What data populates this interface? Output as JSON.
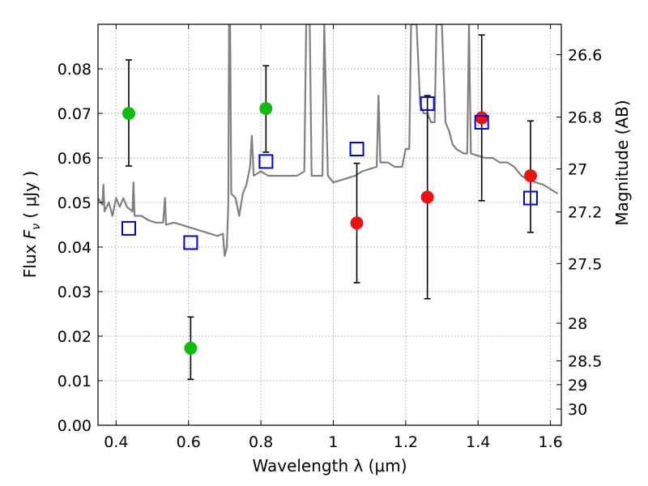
{
  "chart_data": {
    "type": "scatter",
    "xlabel": "Wavelength  λ (μm)",
    "ylabel": "Flux  F_ν  ( μJy )",
    "ylabel_parts": {
      "prefix": "Flux  ",
      "symbol": "F",
      "subscript": "ν",
      "suffix": "  ( μJy )"
    },
    "y2label": "Magnitude (AB)",
    "xlim": [
      0.35,
      1.63
    ],
    "ylim": [
      0.0,
      0.09
    ],
    "x_ticks": [
      0.4,
      0.6,
      0.8,
      1.0,
      1.2,
      1.4,
      1.6
    ],
    "x_tick_labels": [
      "0.4",
      "0.6",
      "0.8",
      "1",
      "1.2",
      "1.4",
      "1.6"
    ],
    "y_ticks": [
      0.0,
      0.01,
      0.02,
      0.03,
      0.04,
      0.05,
      0.06,
      0.07,
      0.08
    ],
    "y_tick_labels": [
      "0.00",
      "0.01",
      "0.02",
      "0.03",
      "0.04",
      "0.05",
      "0.06",
      "0.07",
      "0.08"
    ],
    "mag_ticks": [
      26.6,
      26.8,
      27,
      27.2,
      27.5,
      28,
      28.5,
      29,
      30
    ],
    "mag_tick_labels": [
      "26.6",
      "26.8",
      "27",
      "27.2",
      "27.5",
      "28",
      "28.5",
      "29",
      "30"
    ],
    "grid": true,
    "colors": {
      "green": "#11bb11",
      "red": "#ee1111",
      "blue": "#0000dd",
      "spectrum": "#808080",
      "errorbar": "#000000"
    },
    "series": [
      {
        "name": "green points",
        "marker": "circle",
        "color": "#11bb11",
        "points": [
          {
            "x": 0.435,
            "y": 0.07,
            "ylo": 0.0582,
            "yhi": 0.082
          },
          {
            "x": 0.606,
            "y": 0.0173,
            "ylo": 0.0103,
            "yhi": 0.0243
          },
          {
            "x": 0.814,
            "y": 0.0711,
            "ylo": 0.0613,
            "yhi": 0.0807
          }
        ]
      },
      {
        "name": "red points",
        "marker": "circle",
        "color": "#ee1111",
        "points": [
          {
            "x": 1.065,
            "y": 0.0454,
            "ylo": 0.032,
            "yhi": 0.0588
          },
          {
            "x": 1.26,
            "y": 0.0512,
            "ylo": 0.0284,
            "yhi": 0.074
          },
          {
            "x": 1.41,
            "y": 0.069,
            "ylo": 0.0504,
            "yhi": 0.0876
          },
          {
            "x": 1.545,
            "y": 0.056,
            "ylo": 0.0433,
            "yhi": 0.0683
          }
        ]
      },
      {
        "name": "blue model squares",
        "marker": "open-square",
        "color": "#0000dd",
        "points": [
          {
            "x": 0.435,
            "y": 0.0442
          },
          {
            "x": 0.606,
            "y": 0.041
          },
          {
            "x": 0.814,
            "y": 0.0592
          },
          {
            "x": 1.065,
            "y": 0.062
          },
          {
            "x": 1.26,
            "y": 0.0722
          },
          {
            "x": 1.41,
            "y": 0.068
          },
          {
            "x": 1.545,
            "y": 0.051
          }
        ]
      },
      {
        "name": "spectrum",
        "type": "line",
        "color": "#808080",
        "points": [
          [
            0.35,
            0.051
          ],
          [
            0.362,
            0.0495
          ],
          [
            0.365,
            0.054
          ],
          [
            0.368,
            0.048
          ],
          [
            0.38,
            0.05
          ],
          [
            0.39,
            0.047
          ],
          [
            0.4,
            0.051
          ],
          [
            0.41,
            0.049
          ],
          [
            0.42,
            0.051
          ],
          [
            0.43,
            0.049
          ],
          [
            0.445,
            0.048
          ],
          [
            0.448,
            0.0545
          ],
          [
            0.451,
            0.047
          ],
          [
            0.47,
            0.047
          ],
          [
            0.49,
            0.046
          ],
          [
            0.51,
            0.0455
          ],
          [
            0.53,
            0.0455
          ],
          [
            0.535,
            0.051
          ],
          [
            0.538,
            0.045
          ],
          [
            0.56,
            0.0455
          ],
          [
            0.58,
            0.045
          ],
          [
            0.6,
            0.0445
          ],
          [
            0.62,
            0.044
          ],
          [
            0.64,
            0.0435
          ],
          [
            0.66,
            0.043
          ],
          [
            0.68,
            0.0425
          ],
          [
            0.695,
            0.043
          ],
          [
            0.7,
            0.038
          ],
          [
            0.706,
            0.04
          ],
          [
            0.71,
            0.05
          ],
          [
            0.712,
            0.09
          ],
          [
            0.715,
            0.09
          ],
          [
            0.718,
            0.052
          ],
          [
            0.73,
            0.051
          ],
          [
            0.74,
            0.047
          ],
          [
            0.75,
            0.052
          ],
          [
            0.76,
            0.054
          ],
          [
            0.77,
            0.058
          ],
          [
            0.775,
            0.065
          ],
          [
            0.78,
            0.056
          ],
          [
            0.8,
            0.057
          ],
          [
            0.82,
            0.056
          ],
          [
            0.84,
            0.056
          ],
          [
            0.86,
            0.056
          ],
          [
            0.88,
            0.056
          ],
          [
            0.9,
            0.056
          ],
          [
            0.92,
            0.057
          ],
          [
            0.925,
            0.09
          ],
          [
            0.935,
            0.09
          ],
          [
            0.94,
            0.056
          ],
          [
            0.96,
            0.056
          ],
          [
            0.97,
            0.056
          ],
          [
            0.975,
            0.09
          ],
          [
            0.985,
            0.056
          ],
          [
            1.0,
            0.0545
          ],
          [
            1.02,
            0.055
          ],
          [
            1.04,
            0.0555
          ],
          [
            1.06,
            0.056
          ],
          [
            1.08,
            0.057
          ],
          [
            1.1,
            0.0575
          ],
          [
            1.12,
            0.058
          ],
          [
            1.125,
            0.074
          ],
          [
            1.13,
            0.059
          ],
          [
            1.15,
            0.059
          ],
          [
            1.17,
            0.058
          ],
          [
            1.19,
            0.058
          ],
          [
            1.2,
            0.062
          ],
          [
            1.21,
            0.062
          ],
          [
            1.215,
            0.09
          ],
          [
            1.23,
            0.09
          ],
          [
            1.24,
            0.072
          ],
          [
            1.25,
            0.07
          ],
          [
            1.26,
            0.07
          ],
          [
            1.27,
            0.068
          ],
          [
            1.28,
            0.068
          ],
          [
            1.285,
            0.09
          ],
          [
            1.3,
            0.09
          ],
          [
            1.31,
            0.068
          ],
          [
            1.32,
            0.066
          ],
          [
            1.33,
            0.063
          ],
          [
            1.34,
            0.062
          ],
          [
            1.36,
            0.061
          ],
          [
            1.37,
            0.061
          ],
          [
            1.375,
            0.09
          ],
          [
            1.38,
            0.061
          ],
          [
            1.4,
            0.0605
          ],
          [
            1.42,
            0.06
          ],
          [
            1.44,
            0.06
          ],
          [
            1.46,
            0.059
          ],
          [
            1.48,
            0.059
          ],
          [
            1.5,
            0.058
          ],
          [
            1.52,
            0.056
          ],
          [
            1.54,
            0.055
          ],
          [
            1.56,
            0.0545
          ],
          [
            1.58,
            0.054
          ],
          [
            1.6,
            0.053
          ],
          [
            1.62,
            0.052
          ]
        ]
      }
    ]
  }
}
